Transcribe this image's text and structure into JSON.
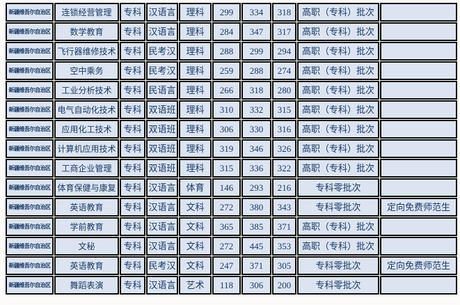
{
  "colors": {
    "page_bg": "#fcfbfa",
    "cell_bg": "#dce4f1",
    "text": "#1b3a66",
    "border": "#0d0d0d"
  },
  "table": {
    "columns": [
      "region",
      "major",
      "level",
      "language",
      "subject",
      "score1",
      "score2",
      "score3",
      "batch",
      "note"
    ],
    "rows": [
      [
        "新疆维吾尔自治区",
        "连锁经营管理",
        "专科",
        "汉语言",
        "理科",
        "299",
        "334",
        "318",
        "高职（专科）批次",
        ""
      ],
      [
        "新疆维吾尔自治区",
        "数学教育",
        "专科",
        "汉语言",
        "理科",
        "284",
        "347",
        "317",
        "高职（专科）批次",
        ""
      ],
      [
        "新疆维吾尔自治区",
        "飞行器维修技术",
        "专科",
        "民考汉",
        "理科",
        "288",
        "299",
        "294",
        "高职（专科）批次",
        ""
      ],
      [
        "新疆维吾尔自治区",
        "空中乘务",
        "专科",
        "民考汉",
        "理科",
        "259",
        "288",
        "274",
        "高职（专科）批次",
        ""
      ],
      [
        "新疆维吾尔自治区",
        "工业分析技术",
        "专科",
        "民语言",
        "理科",
        "266",
        "318",
        "280",
        "高职（专科）批次",
        ""
      ],
      [
        "新疆维吾尔自治区",
        "电气自动化技术",
        "专科",
        "双语班",
        "理科",
        "310",
        "332",
        "315",
        "高职（专科）批次",
        ""
      ],
      [
        "新疆维吾尔自治区",
        "应用化工技术",
        "专科",
        "双语班",
        "理科",
        "306",
        "330",
        "316",
        "高职（专科）批次",
        ""
      ],
      [
        "新疆维吾尔自治区",
        "计算机应用技术",
        "专科",
        "双语班",
        "理科",
        "319",
        "346",
        "326",
        "高职（专科）批次",
        ""
      ],
      [
        "新疆维吾尔自治区",
        "工商企业管理",
        "专科",
        "双语班",
        "理科",
        "315",
        "336",
        "322",
        "高职（专科）批次",
        ""
      ],
      [
        "新疆维吾尔自治区",
        "体育保健与康复",
        "专科",
        "汉语言",
        "体育",
        "146",
        "293",
        "216",
        "专科零批次",
        ""
      ],
      [
        "新疆维吾尔自治区",
        "英语教育",
        "专科",
        "汉语言",
        "文科",
        "272",
        "380",
        "343",
        "专科零批次",
        "定向免费师范生"
      ],
      [
        "新疆维吾尔自治区",
        "学前教育",
        "专科",
        "汉语言",
        "文科",
        "365",
        "385",
        "371",
        "高职（专科）批次",
        ""
      ],
      [
        "新疆维吾尔自治区",
        "文秘",
        "专科",
        "汉语言",
        "文科",
        "272",
        "445",
        "353",
        "高职（专科）批次",
        ""
      ],
      [
        "新疆维吾尔自治区",
        "英语教育",
        "专科",
        "民考汉",
        "文科",
        "247",
        "371",
        "305",
        "专科零批次",
        "定向免费师范生"
      ],
      [
        "新疆维吾尔自治区",
        "舞蹈表演",
        "专科",
        "汉语言",
        "艺术",
        "118",
        "306",
        "200",
        "专科零批次",
        ""
      ]
    ]
  }
}
